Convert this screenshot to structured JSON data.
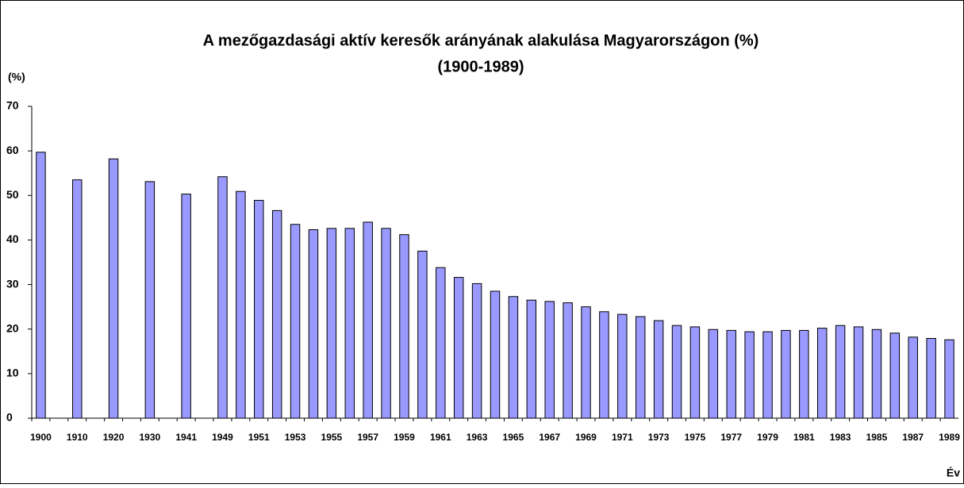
{
  "chart_data": {
    "type": "bar",
    "title": "A mezőgazdasági aktív keresők arányának alakulása Magyarországon (%)",
    "subtitle": "(1900-1989)",
    "y_label": "(%)",
    "x_label": "Év",
    "color": "#9999ff",
    "categories": [
      "1900",
      null,
      "1910",
      null,
      "1920",
      null,
      "1930",
      null,
      "1941",
      null,
      "1949",
      null,
      "1951",
      null,
      "1953",
      null,
      "1955",
      null,
      "1957",
      null,
      "1959",
      null,
      "1961",
      null,
      "1963",
      null,
      "1965",
      null,
      "1967",
      null,
      "1969",
      null,
      "1971",
      null,
      "1973",
      null,
      "1975",
      null,
      "1977",
      null,
      "1979",
      null,
      "1981",
      null,
      "1983",
      null,
      "1985",
      null,
      "1987",
      null,
      "1989"
    ],
    "values": [
      59.7,
      null,
      53.5,
      null,
      58.2,
      null,
      53.1,
      null,
      50.3,
      null,
      54.2,
      50.9,
      48.9,
      46.6,
      43.5,
      42.3,
      42.6,
      42.6,
      44.0,
      42.6,
      41.2,
      37.5,
      33.8,
      31.6,
      30.2,
      28.5,
      27.3,
      26.5,
      26.2,
      25.9,
      25.0,
      23.9,
      23.3,
      22.8,
      21.9,
      20.8,
      20.5,
      19.9,
      19.7,
      19.4,
      19.4,
      19.7,
      19.7,
      20.2,
      20.8,
      20.5,
      19.9,
      19.1,
      18.2,
      17.9,
      17.6
    ],
    "ylim": [
      0,
      70
    ],
    "yticks": [
      0,
      10,
      20,
      30,
      40,
      50,
      60,
      70
    ]
  }
}
